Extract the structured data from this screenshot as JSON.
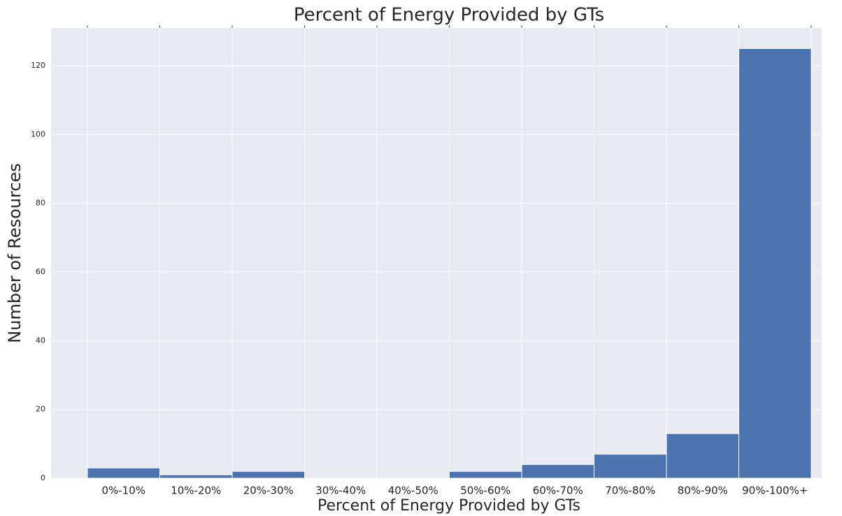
{
  "chart_data": {
    "type": "bar",
    "title": "Percent of Energy Provided by GTs",
    "x_label": "Percent of Energy Provided by GTs",
    "y_label": "Number of Resources",
    "categories": [
      "0%-10%",
      "10%-20%",
      "20%-30%",
      "30%-40%",
      "40%-50%",
      "50%-60%",
      "60%-70%",
      "70%-80%",
      "80%-90%",
      "90%-100%+"
    ],
    "values": [
      3,
      1,
      2,
      0,
      0,
      2,
      4,
      7,
      13,
      125
    ],
    "color": "#4c72b0",
    "ylim": [
      0,
      131
    ],
    "yticks": [
      0,
      20,
      40,
      60,
      80,
      100,
      120
    ],
    "grid": true
  }
}
